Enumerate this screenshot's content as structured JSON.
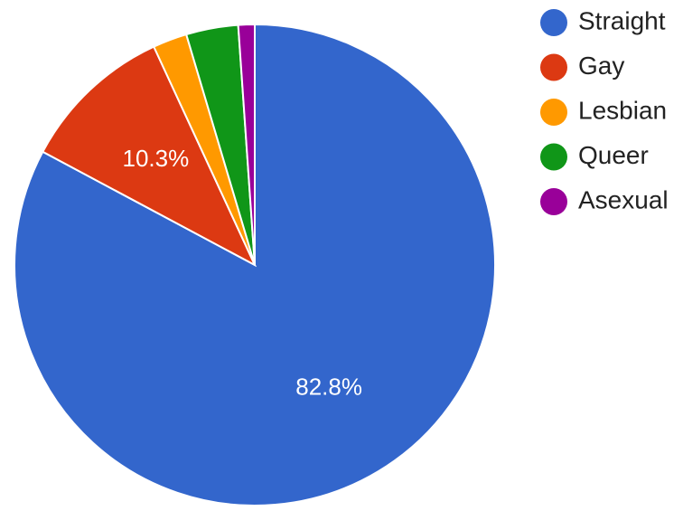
{
  "chart_data": {
    "type": "pie",
    "categories": [
      "Straight",
      "Gay",
      "Lesbian",
      "Queer",
      "Asexual"
    ],
    "values": [
      82.8,
      10.3,
      2.3,
      3.5,
      1.1
    ],
    "colors": [
      "#3366cc",
      "#dc3912",
      "#ff9900",
      "#109618",
      "#990099"
    ],
    "data_labels": [
      "82.8%",
      "10.3%",
      "",
      "",
      ""
    ],
    "legend_position": "right",
    "start_angle_deg": 0,
    "direction": "clockwise"
  }
}
